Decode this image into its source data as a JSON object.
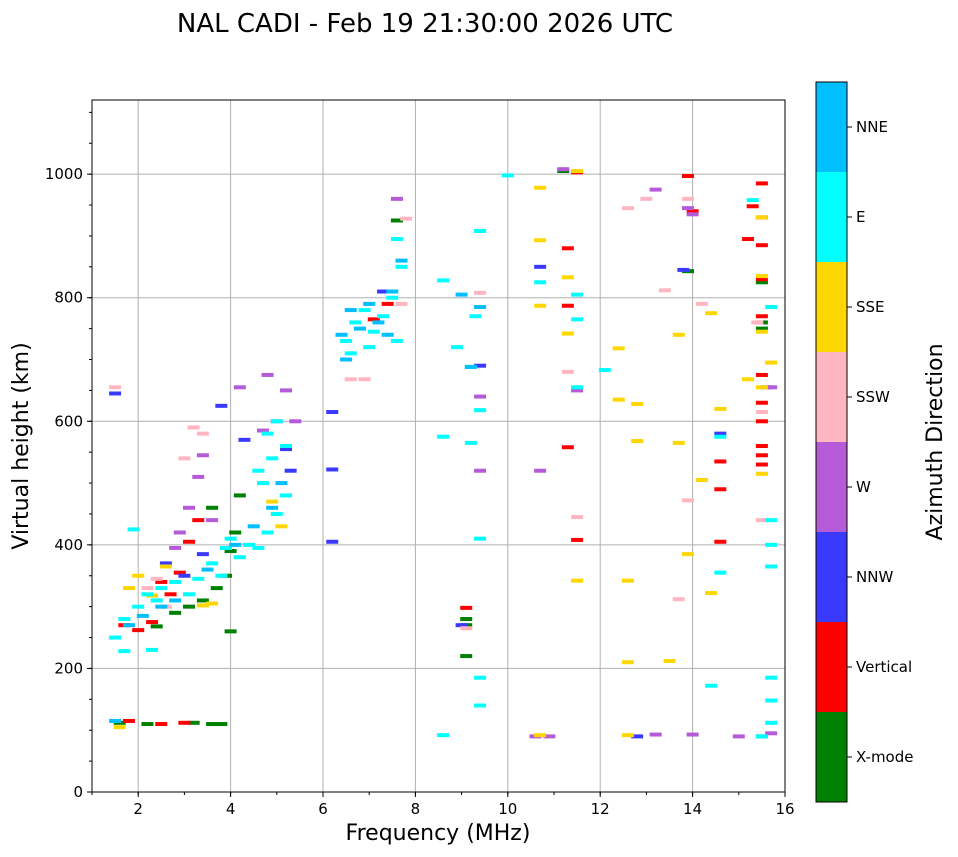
{
  "chart_data": {
    "type": "scatter",
    "title": "NAL CADI - Feb 19 21:30:00 2026 UTC",
    "xlabel": "Frequency (MHz)",
    "ylabel": "Virtual height (km)",
    "xlim": [
      1,
      16
    ],
    "ylim": [
      0,
      1120
    ],
    "xticks": [
      2,
      4,
      6,
      8,
      10,
      12,
      14,
      16
    ],
    "yticks": [
      0,
      200,
      400,
      600,
      800,
      1000
    ],
    "grid": true,
    "colorbar": {
      "label": "Azimuth Direction",
      "categories": [
        {
          "name": "X-mode",
          "color": "#008000"
        },
        {
          "name": "Vertical",
          "color": "#ff0000"
        },
        {
          "name": "NNW",
          "color": "#3a3aff"
        },
        {
          "name": "W",
          "color": "#b65bd8"
        },
        {
          "name": "SSW",
          "color": "#ffb6c1"
        },
        {
          "name": "SSE",
          "color": "#ffd700"
        },
        {
          "name": "E",
          "color": "#00ffff"
        },
        {
          "name": "NNE",
          "color": "#00bfff"
        }
      ]
    },
    "series": [
      {
        "name": "X-mode",
        "points": [
          [
            1.6,
            112
          ],
          [
            2.2,
            110
          ],
          [
            3.2,
            112
          ],
          [
            3.6,
            110
          ],
          [
            3.8,
            110
          ],
          [
            2.4,
            268
          ],
          [
            2.8,
            290
          ],
          [
            3.1,
            300
          ],
          [
            3.4,
            310
          ],
          [
            3.7,
            330
          ],
          [
            3.9,
            350
          ],
          [
            4.0,
            390
          ],
          [
            4.1,
            420
          ],
          [
            3.6,
            460
          ],
          [
            4.2,
            480
          ],
          [
            4.0,
            260
          ],
          [
            9.1,
            280
          ],
          [
            9.1,
            270
          ],
          [
            9.1,
            220
          ],
          [
            7.6,
            925
          ],
          [
            11.2,
            1005
          ],
          [
            13.9,
            843
          ],
          [
            15.5,
            750
          ],
          [
            15.5,
            760
          ],
          [
            15.5,
            825
          ],
          [
            15.5,
            90
          ]
        ]
      },
      {
        "name": "Vertical",
        "points": [
          [
            1.7,
            270
          ],
          [
            2.0,
            262
          ],
          [
            2.3,
            275
          ],
          [
            2.7,
            320
          ],
          [
            2.9,
            355
          ],
          [
            3.1,
            405
          ],
          [
            3.3,
            440
          ],
          [
            2.5,
            340
          ],
          [
            1.8,
            115
          ],
          [
            2.5,
            110
          ],
          [
            3.0,
            112
          ],
          [
            9.1,
            298
          ],
          [
            11.5,
            408
          ],
          [
            11.3,
            558
          ],
          [
            11.3,
            787
          ],
          [
            11.3,
            880
          ],
          [
            11.5,
            1003
          ],
          [
            13.9,
            997
          ],
          [
            14.0,
            940
          ],
          [
            14.6,
            490
          ],
          [
            14.6,
            535
          ],
          [
            14.6,
            405
          ],
          [
            15.5,
            530
          ],
          [
            15.5,
            545
          ],
          [
            15.5,
            560
          ],
          [
            15.5,
            600
          ],
          [
            15.5,
            630
          ],
          [
            15.5,
            675
          ],
          [
            15.5,
            770
          ],
          [
            15.5,
            830
          ],
          [
            15.5,
            885
          ],
          [
            15.5,
            930
          ],
          [
            15.5,
            985
          ],
          [
            15.3,
            948
          ],
          [
            15.2,
            895
          ],
          [
            7.1,
            765
          ],
          [
            7.4,
            790
          ]
        ]
      },
      {
        "name": "NNW",
        "points": [
          [
            1.5,
            645
          ],
          [
            2.6,
            370
          ],
          [
            3.0,
            350
          ],
          [
            3.4,
            385
          ],
          [
            5.3,
            520
          ],
          [
            5.2,
            555
          ],
          [
            6.2,
            405
          ],
          [
            6.2,
            522
          ],
          [
            6.2,
            615
          ],
          [
            7.3,
            810
          ],
          [
            9.0,
            270
          ],
          [
            9.4,
            690
          ],
          [
            10.7,
            850
          ],
          [
            12.8,
            90
          ],
          [
            13.8,
            845
          ],
          [
            14.6,
            580
          ],
          [
            15.6,
            655
          ],
          [
            3.8,
            625
          ],
          [
            4.3,
            570
          ]
        ]
      },
      {
        "name": "W",
        "points": [
          [
            2.9,
            420
          ],
          [
            3.1,
            460
          ],
          [
            3.3,
            510
          ],
          [
            3.4,
            545
          ],
          [
            2.8,
            395
          ],
          [
            3.6,
            440
          ],
          [
            4.2,
            655
          ],
          [
            4.8,
            675
          ],
          [
            5.2,
            650
          ],
          [
            5.4,
            600
          ],
          [
            5.0,
            600
          ],
          [
            4.7,
            585
          ],
          [
            9.4,
            520
          ],
          [
            9.4,
            640
          ],
          [
            10.7,
            520
          ],
          [
            10.6,
            90
          ],
          [
            10.9,
            90
          ],
          [
            11.2,
            1008
          ],
          [
            13.2,
            975
          ],
          [
            13.9,
            945
          ],
          [
            14.0,
            935
          ],
          [
            13.2,
            93
          ],
          [
            14.0,
            93
          ],
          [
            15.0,
            90
          ],
          [
            15.7,
            655
          ],
          [
            15.7,
            95
          ],
          [
            7.6,
            960
          ],
          [
            11.5,
            650
          ]
        ]
      },
      {
        "name": "SSW",
        "points": [
          [
            1.5,
            655
          ],
          [
            2.2,
            330
          ],
          [
            2.6,
            300
          ],
          [
            3.0,
            540
          ],
          [
            3.2,
            590
          ],
          [
            3.4,
            580
          ],
          [
            2.4,
            345
          ],
          [
            6.6,
            668
          ],
          [
            6.9,
            668
          ],
          [
            7.7,
            790
          ],
          [
            7.8,
            928
          ],
          [
            11.3,
            680
          ],
          [
            11.5,
            445
          ],
          [
            12.6,
            945
          ],
          [
            13.0,
            960
          ],
          [
            13.4,
            812
          ],
          [
            13.7,
            312
          ],
          [
            13.9,
            960
          ],
          [
            13.9,
            472
          ],
          [
            14.2,
            790
          ],
          [
            15.5,
            440
          ],
          [
            15.5,
            615
          ],
          [
            15.4,
            760
          ],
          [
            9.1,
            265
          ],
          [
            9.4,
            808
          ]
        ]
      },
      {
        "name": "SSE",
        "points": [
          [
            1.6,
            105
          ],
          [
            1.8,
            330
          ],
          [
            2.0,
            350
          ],
          [
            2.3,
            318
          ],
          [
            2.6,
            365
          ],
          [
            3.4,
            302
          ],
          [
            3.6,
            305
          ],
          [
            5.1,
            430
          ],
          [
            4.9,
            470
          ],
          [
            10.7,
            978
          ],
          [
            10.7,
            893
          ],
          [
            10.7,
            787
          ],
          [
            10.7,
            92
          ],
          [
            11.3,
            742
          ],
          [
            11.3,
            833
          ],
          [
            11.5,
            1005
          ],
          [
            11.5,
            342
          ],
          [
            12.4,
            635
          ],
          [
            12.4,
            718
          ],
          [
            12.6,
            342
          ],
          [
            12.6,
            210
          ],
          [
            12.6,
            92
          ],
          [
            12.8,
            628
          ],
          [
            12.8,
            568
          ],
          [
            13.5,
            212
          ],
          [
            13.7,
            740
          ],
          [
            13.7,
            565
          ],
          [
            13.9,
            385
          ],
          [
            14.2,
            505
          ],
          [
            14.4,
            775
          ],
          [
            14.4,
            322
          ],
          [
            14.6,
            620
          ],
          [
            15.2,
            668
          ],
          [
            15.5,
            515
          ],
          [
            15.5,
            655
          ],
          [
            15.5,
            745
          ],
          [
            15.5,
            835
          ],
          [
            15.5,
            930
          ],
          [
            15.7,
            695
          ]
        ]
      },
      {
        "name": "E",
        "points": [
          [
            1.5,
            250
          ],
          [
            1.7,
            280
          ],
          [
            2.0,
            300
          ],
          [
            2.2,
            320
          ],
          [
            2.5,
            330
          ],
          [
            2.8,
            340
          ],
          [
            3.1,
            320
          ],
          [
            3.3,
            345
          ],
          [
            3.6,
            370
          ],
          [
            3.9,
            395
          ],
          [
            4.2,
            380
          ],
          [
            4.4,
            400
          ],
          [
            4.6,
            395
          ],
          [
            4.8,
            420
          ],
          [
            5.0,
            450
          ],
          [
            5.2,
            480
          ],
          [
            4.7,
            500
          ],
          [
            4.9,
            540
          ],
          [
            5.2,
            560
          ],
          [
            5.0,
            600
          ],
          [
            4.8,
            580
          ],
          [
            4.6,
            520
          ],
          [
            2.4,
            310
          ],
          [
            3.8,
            350
          ],
          [
            4.0,
            410
          ],
          [
            1.7,
            228
          ],
          [
            1.9,
            425
          ],
          [
            2.3,
            230
          ],
          [
            6.5,
            730
          ],
          [
            6.7,
            760
          ],
          [
            6.9,
            780
          ],
          [
            7.1,
            745
          ],
          [
            7.3,
            770
          ],
          [
            7.5,
            800
          ],
          [
            7.7,
            850
          ],
          [
            7.6,
            730
          ],
          [
            6.6,
            710
          ],
          [
            7.0,
            720
          ],
          [
            7.6,
            895
          ],
          [
            8.6,
            575
          ],
          [
            8.6,
            828
          ],
          [
            8.6,
            92
          ],
          [
            8.9,
            720
          ],
          [
            9.2,
            688
          ],
          [
            9.2,
            565
          ],
          [
            9.3,
            770
          ],
          [
            9.4,
            185
          ],
          [
            9.4,
            140
          ],
          [
            9.4,
            410
          ],
          [
            9.4,
            908
          ],
          [
            9.4,
            618
          ],
          [
            10.0,
            998
          ],
          [
            10.7,
            825
          ],
          [
            11.5,
            805
          ],
          [
            11.5,
            765
          ],
          [
            11.5,
            655
          ],
          [
            12.1,
            683
          ],
          [
            14.4,
            172
          ],
          [
            14.6,
            575
          ],
          [
            14.6,
            355
          ],
          [
            15.3,
            958
          ],
          [
            15.7,
            785
          ],
          [
            15.7,
            440
          ],
          [
            15.7,
            400
          ],
          [
            15.7,
            365
          ],
          [
            15.7,
            185
          ],
          [
            15.7,
            148
          ],
          [
            15.7,
            112
          ],
          [
            15.5,
            90
          ]
        ]
      },
      {
        "name": "NNE",
        "points": [
          [
            1.5,
            115
          ],
          [
            1.8,
            270
          ],
          [
            2.1,
            285
          ],
          [
            2.5,
            300
          ],
          [
            2.8,
            310
          ],
          [
            3.5,
            360
          ],
          [
            4.1,
            400
          ],
          [
            4.5,
            430
          ],
          [
            4.9,
            460
          ],
          [
            5.1,
            500
          ],
          [
            6.4,
            740
          ],
          [
            6.6,
            780
          ],
          [
            6.8,
            750
          ],
          [
            7.0,
            790
          ],
          [
            7.2,
            760
          ],
          [
            7.5,
            810
          ],
          [
            7.7,
            860
          ],
          [
            7.4,
            740
          ],
          [
            6.5,
            700
          ],
          [
            9.0,
            805
          ],
          [
            9.4,
            785
          ],
          [
            9.2,
            688
          ]
        ]
      }
    ]
  }
}
